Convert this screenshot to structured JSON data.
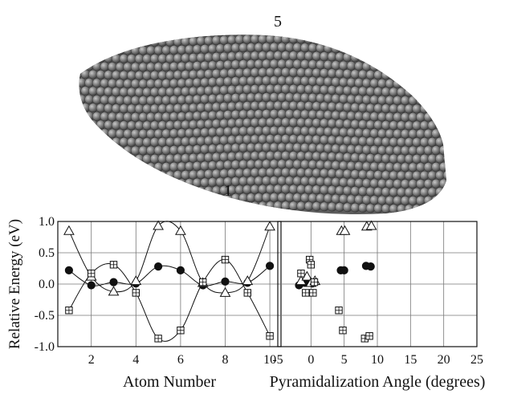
{
  "figure": {
    "labels": {
      "top": "5",
      "bottom": "1"
    }
  },
  "chart_data": [
    {
      "type": "line",
      "xlabel": "Atom Number",
      "ylabel": "Relative Energy (eV)",
      "xlim": [
        0.5,
        10.5
      ],
      "ylim": [
        -1.0,
        1.0
      ],
      "x_ticks": [
        2,
        4,
        6,
        8,
        10
      ],
      "y_ticks": [
        -1.0,
        -0.5,
        0.0,
        0.5,
        1.0
      ],
      "y_tick_labels": [
        "-1.0",
        "-0.5",
        "0.0",
        "0.5",
        "1.0"
      ],
      "grid": true,
      "series": [
        {
          "marker": "circle-filled",
          "x": [
            1,
            2,
            3,
            4,
            5,
            6,
            7,
            8,
            9,
            10
          ],
          "values": [
            0.22,
            -0.02,
            0.03,
            0.01,
            0.28,
            0.22,
            -0.02,
            0.04,
            0.02,
            0.29
          ]
        },
        {
          "marker": "triangle-open",
          "x": [
            1,
            2,
            3,
            4,
            5,
            6,
            7,
            8,
            9,
            10
          ],
          "values": [
            0.85,
            0.12,
            -0.12,
            0.05,
            0.93,
            0.85,
            0.02,
            -0.14,
            0.05,
            0.92
          ]
        },
        {
          "marker": "square-crossed",
          "x": [
            1,
            2,
            3,
            4,
            5,
            6,
            7,
            8,
            9,
            10
          ],
          "values": [
            -0.42,
            0.17,
            0.31,
            -0.14,
            -0.87,
            -0.74,
            0.03,
            0.39,
            -0.14,
            -0.83
          ]
        }
      ]
    },
    {
      "type": "scatter",
      "xlabel": "Pyramidalization Angle (degrees)",
      "xlim": [
        -5,
        25
      ],
      "ylim": [
        -1.0,
        1.0
      ],
      "x_ticks": [
        -5,
        0,
        5,
        10,
        15,
        20,
        25
      ],
      "y_ticks": [
        -1.0,
        -0.5,
        0.0,
        0.5,
        1.0
      ],
      "grid": true,
      "series": [
        {
          "marker": "circle-filled",
          "x": [
            -1.8,
            -1.0,
            -0.5,
            0.2,
            4.5,
            5.0,
            8.3,
            9.0
          ],
          "values": [
            -0.02,
            0.02,
            0.03,
            0.01,
            0.22,
            0.22,
            0.29,
            0.28
          ]
        },
        {
          "marker": "triangle-open",
          "x": [
            -1.5,
            -0.6,
            0.0,
            0.6,
            4.6,
            5.1,
            8.4,
            9.1
          ],
          "values": [
            0.05,
            0.12,
            0.02,
            0.05,
            0.85,
            0.85,
            0.92,
            0.93
          ]
        },
        {
          "marker": "square-crossed",
          "x": [
            -1.5,
            -0.8,
            -0.2,
            0.0,
            0.3,
            0.5,
            4.2,
            4.8,
            8.1,
            8.8
          ],
          "values": [
            0.17,
            -0.14,
            0.39,
            0.31,
            -0.14,
            0.03,
            -0.42,
            -0.74,
            -0.87,
            -0.83
          ]
        }
      ]
    }
  ]
}
